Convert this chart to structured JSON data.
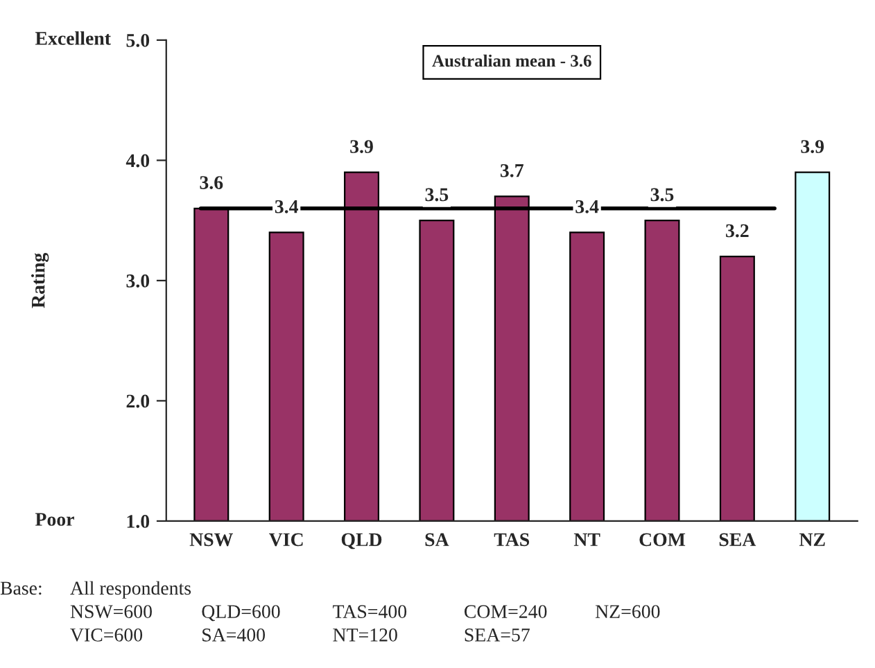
{
  "chart_data": {
    "type": "bar",
    "ylabel": "Rating",
    "categories": [
      "NSW",
      "VIC",
      "QLD",
      "SA",
      "TAS",
      "NT",
      "COM",
      "SEA",
      "NZ"
    ],
    "values": [
      3.6,
      3.4,
      3.9,
      3.5,
      3.7,
      3.4,
      3.5,
      3.2,
      3.9
    ],
    "colors": [
      "#993366",
      "#993366",
      "#993366",
      "#993366",
      "#993366",
      "#993366",
      "#993366",
      "#993366",
      "#ccffff"
    ],
    "ylim": [
      1.0,
      5.0
    ],
    "yticks": [
      {
        "value": 1.0,
        "label": "1.0"
      },
      {
        "value": 2.0,
        "label": "2.0"
      },
      {
        "value": 3.0,
        "label": "3.0"
      },
      {
        "value": 4.0,
        "label": "4.0"
      },
      {
        "value": 5.0,
        "label": "5.0"
      }
    ],
    "data_labels": true,
    "ref_lines": [
      {
        "axis": "y",
        "value": 3.6,
        "label": "Australian mean - 3.6",
        "color": "#000000"
      }
    ],
    "annotations": [
      "Excellent",
      "Poor",
      "Base:",
      "All respondents",
      "NSW=600",
      "VIC=600",
      "QLD=600",
      "SA=400",
      "TAS=400",
      "NT=120",
      "COM=240",
      "SEA=57",
      "NZ=600"
    ],
    "grid": false
  }
}
